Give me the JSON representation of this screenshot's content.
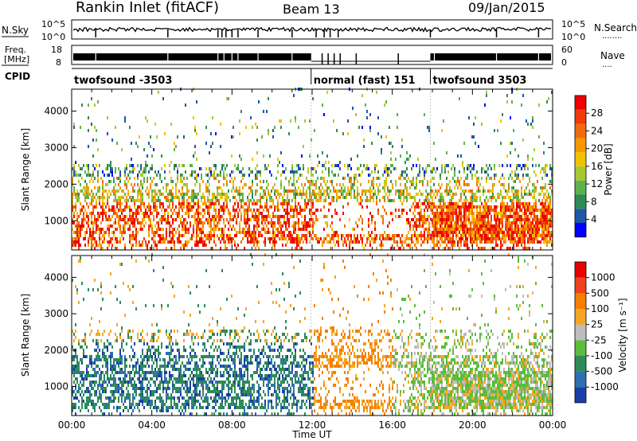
{
  "header": {
    "title": "Rankin Inlet (fitACF)",
    "beam": "Beam 13",
    "date": "09/Jan/2015"
  },
  "status_panels": {
    "nsky_label": "N.Sky",
    "nsearch_label": "N.Search",
    "nsearch_legend": "........",
    "freq_label_1": "Freq.",
    "freq_label_2": "[MHz]",
    "nave_label": "Nave",
    "nave_legend": "....",
    "cpid_label": "CPID",
    "nsky_ticks": [
      "10^5",
      "10^0"
    ],
    "nsearch_ticks": [
      "10^5",
      "10^0"
    ],
    "freq_ticks": [
      "18",
      "8"
    ],
    "nave_ticks": [
      "60",
      "0"
    ]
  },
  "cpid_segments": [
    {
      "label": "twofsound -3503",
      "start": 0.0,
      "end": 11.95
    },
    {
      "label": "normal (fast) 151",
      "start": 11.95,
      "end": 17.9
    },
    {
      "label": "twofsound 3503",
      "start": 17.9,
      "end": 24.0
    }
  ],
  "chart_data": [
    {
      "type": "heatmap",
      "name": "Power",
      "xlabel": "Time UT",
      "ylabel": "Slant Range [km]",
      "xlim": [
        0,
        24
      ],
      "ylim": [
        200,
        4600
      ],
      "x_ticks": [
        "00:00",
        "04:00",
        "08:00",
        "12:00",
        "16:00",
        "20:00",
        "00:00"
      ],
      "y_ticks": [
        "1000",
        "2000",
        "3000",
        "4000"
      ],
      "colorbar_label": "Power [dB]",
      "colorbar_ticks": [
        "28",
        "24",
        "20",
        "16",
        "12",
        "8",
        "4"
      ],
      "colors": [
        "#0000ff",
        "#1e56a8",
        "#2e8b57",
        "#5eb14a",
        "#a8c832",
        "#f2c100",
        "#f59a00",
        "#f26a0f",
        "#f03a0c",
        "#ee0000"
      ]
    },
    {
      "type": "heatmap",
      "name": "Velocity",
      "xlabel": "Time UT",
      "ylabel": "Slant Range [km]",
      "xlim": [
        0,
        24
      ],
      "ylim": [
        200,
        4600
      ],
      "x_ticks": [
        "00:00",
        "04:00",
        "08:00",
        "12:00",
        "16:00",
        "20:00",
        "00:00"
      ],
      "y_ticks": [
        "1000",
        "2000",
        "3000",
        "4000"
      ],
      "colorbar_label": "Velocity [m s⁻¹]",
      "colorbar_ticks": [
        "1000",
        "500",
        "100",
        "25",
        "-25",
        "-100",
        "-500",
        "-1000"
      ],
      "colors": [
        "#1a3ea8",
        "#2f6fb0",
        "#2e8b57",
        "#5dbb3d",
        "#bdbdbd",
        "#f5a623",
        "#f57f00",
        "#f0401e",
        "#e80000"
      ]
    }
  ]
}
